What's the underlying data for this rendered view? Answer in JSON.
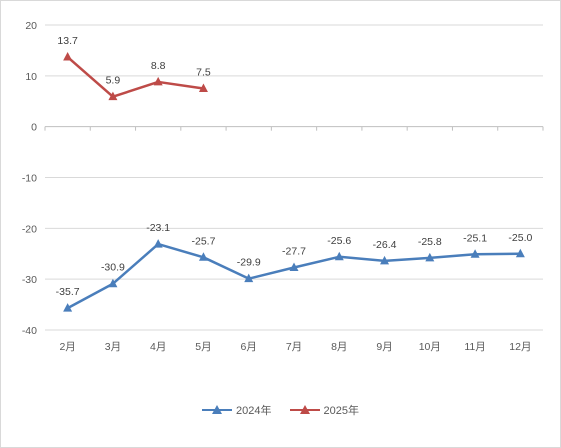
{
  "chart_data": {
    "type": "line",
    "categories": [
      "2月",
      "3月",
      "4月",
      "5月",
      "6月",
      "7月",
      "8月",
      "9月",
      "10月",
      "11月",
      "12月"
    ],
    "series": [
      {
        "name": "2024年",
        "color": "#4A7EBB",
        "values": [
          -35.7,
          -30.9,
          -23.1,
          -25.7,
          -29.9,
          -27.7,
          -25.6,
          -26.4,
          -25.8,
          -25.1,
          -25.0
        ],
        "labels": [
          "-35.7",
          "-30.9",
          "-23.1",
          "-25.7",
          "-29.9",
          "-27.7",
          "-25.6",
          "-26.4",
          "-25.8",
          "-25.1",
          "-25.0"
        ]
      },
      {
        "name": "2025年",
        "color": "#BE4B48",
        "values": [
          13.7,
          5.9,
          8.8,
          7.5,
          null,
          null,
          null,
          null,
          null,
          null,
          null
        ],
        "labels": [
          "13.7",
          "5.9",
          "8.8",
          "7.5",
          null,
          null,
          null,
          null,
          null,
          null,
          null
        ]
      }
    ],
    "yticks": [
      "20",
      "10",
      "0",
      "-10",
      "-20",
      "-30",
      "-40"
    ],
    "ylim": [
      -40,
      20
    ],
    "grid": true,
    "legend_position": "bottom",
    "title": "",
    "xlabel": "",
    "ylabel": ""
  }
}
